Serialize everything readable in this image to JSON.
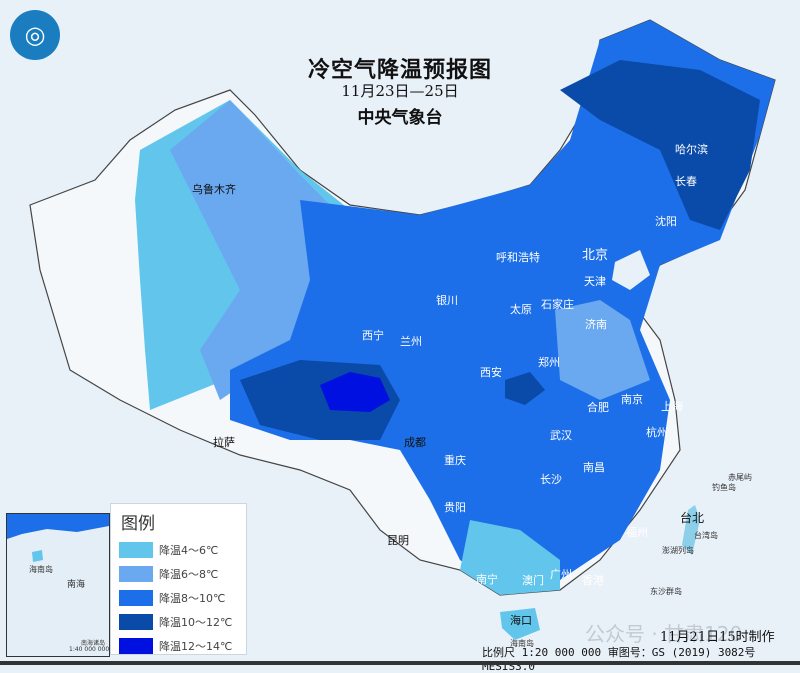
{
  "header": {
    "title": "冷空气降温预报图",
    "dates": "11月23日—25日",
    "issuer": "中央气象台"
  },
  "legend": {
    "title": "图例",
    "items": [
      {
        "label": "降温4～6℃",
        "color": "#62c6ec"
      },
      {
        "label": "降温6～8℃",
        "color": "#6aa8f0"
      },
      {
        "label": "降温8～10℃",
        "color": "#1c6fe8"
      },
      {
        "label": "降温10～12℃",
        "color": "#0a4aa8"
      },
      {
        "label": "降温12～14℃",
        "color": "#0010e0"
      }
    ]
  },
  "cities": [
    "乌鲁木齐",
    "哈尔滨",
    "长春",
    "沈阳",
    "北京",
    "天津",
    "呼和浩特",
    "石家庄",
    "太原",
    "济南",
    "银川",
    "西宁",
    "兰州",
    "郑州",
    "西安",
    "合肥",
    "南京",
    "上海",
    "杭州",
    "武汉",
    "成都",
    "重庆",
    "长沙",
    "南昌",
    "拉萨",
    "贵阳",
    "福州",
    "台北",
    "昆明",
    "南宁",
    "广州",
    "澳门",
    "香港",
    "海口"
  ],
  "islands": [
    "赤尾屿",
    "钓鱼岛",
    "台湾岛",
    "澎湖列岛",
    "东沙群岛",
    "海南岛"
  ],
  "inset": {
    "hainan": "海南岛",
    "sea": "南海",
    "islands": "南海诸岛",
    "scale": "1:40 000 000"
  },
  "footer": {
    "scale": "比例尺 1:20 000 000  审图号：GS (2019) 3082号 MESIS3.0",
    "made": "11月21日15时制作",
    "watermark": "公众号 · 甘肃120"
  }
}
